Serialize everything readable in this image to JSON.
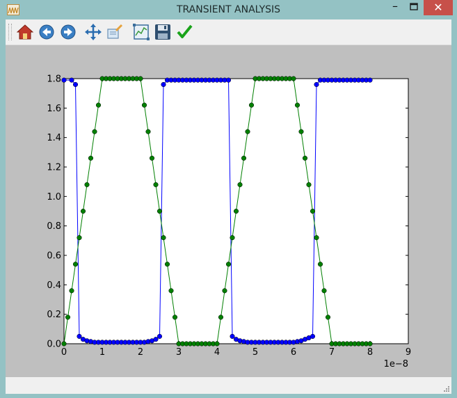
{
  "window": {
    "title": "TRANSIENT ANALYSIS",
    "minimize_label": "–",
    "close_label": "✕"
  },
  "toolbar": {
    "buttons": [
      {
        "name": "home-button",
        "icon": "home-icon"
      },
      {
        "name": "back-button",
        "icon": "back-arrow-icon"
      },
      {
        "name": "forward-button",
        "icon": "forward-arrow-icon"
      },
      {
        "name": "pan-button",
        "icon": "pan-move-icon"
      },
      {
        "name": "zoom-button",
        "icon": "zoom-rect-icon"
      },
      {
        "name": "subplots-button",
        "icon": "subplots-config-icon"
      },
      {
        "name": "save-button",
        "icon": "save-floppy-icon"
      },
      {
        "name": "confirm-button",
        "icon": "checkmark-icon"
      }
    ]
  },
  "colors": {
    "series_blue": "#0000ff",
    "series_green": "#007f00",
    "close_button": "#c7504a",
    "canvas_bg": "#bfbfbf"
  },
  "chart_data": {
    "type": "line",
    "title": "",
    "xlabel": "",
    "ylabel": "",
    "x_offset_label": "1e−8",
    "xlim": [
      0,
      9
    ],
    "ylim": [
      0.0,
      1.8
    ],
    "x_ticks": [
      "0",
      "1",
      "2",
      "3",
      "4",
      "5",
      "6",
      "7",
      "8",
      "9"
    ],
    "y_ticks": [
      "0.0",
      "0.2",
      "0.4",
      "0.6",
      "0.8",
      "1.0",
      "1.2",
      "1.4",
      "1.6",
      "1.8"
    ],
    "grid": false,
    "series": [
      {
        "color": "#0000ff",
        "marker": "circle",
        "x": [
          0,
          0.2,
          0.3,
          0.4,
          0.5,
          0.6,
          0.7,
          0.8,
          0.9,
          1.0,
          1.1,
          1.2,
          1.3,
          1.4,
          1.5,
          1.6,
          1.7,
          1.8,
          1.9,
          2.0,
          2.1,
          2.2,
          2.3,
          2.4,
          2.5,
          2.6,
          2.7,
          2.8,
          2.9,
          3.0,
          3.1,
          3.2,
          3.3,
          3.4,
          3.5,
          3.6,
          3.7,
          3.8,
          3.9,
          4.0,
          4.1,
          4.2,
          4.3,
          4.4,
          4.5,
          4.6,
          4.7,
          4.8,
          4.9,
          5.0,
          5.1,
          5.2,
          5.3,
          5.4,
          5.5,
          5.6,
          5.7,
          5.8,
          5.9,
          6.0,
          6.1,
          6.2,
          6.3,
          6.4,
          6.5,
          6.6,
          6.7,
          6.8,
          6.9,
          7.0,
          7.1,
          7.2,
          7.3,
          7.4,
          7.5,
          7.6,
          7.7,
          7.8,
          7.9,
          8.0
        ],
        "y": [
          1.79,
          1.79,
          1.76,
          0.05,
          0.03,
          0.02,
          0.015,
          0.01,
          0.01,
          0.01,
          0.01,
          0.01,
          0.01,
          0.01,
          0.01,
          0.01,
          0.01,
          0.01,
          0.01,
          0.01,
          0.01,
          0.015,
          0.02,
          0.03,
          0.05,
          1.76,
          1.79,
          1.79,
          1.79,
          1.79,
          1.79,
          1.79,
          1.79,
          1.79,
          1.79,
          1.79,
          1.79,
          1.79,
          1.79,
          1.79,
          1.79,
          1.79,
          1.79,
          0.05,
          0.03,
          0.02,
          0.015,
          0.01,
          0.01,
          0.01,
          0.01,
          0.01,
          0.01,
          0.01,
          0.01,
          0.01,
          0.01,
          0.01,
          0.01,
          0.01,
          0.015,
          0.02,
          0.03,
          0.04,
          0.05,
          1.76,
          1.79,
          1.79,
          1.79,
          1.79,
          1.79,
          1.79,
          1.79,
          1.79,
          1.79,
          1.79,
          1.79,
          1.79,
          1.79,
          1.79
        ]
      },
      {
        "color": "#007f00",
        "marker": "circle",
        "x": [
          0,
          0.1,
          0.2,
          0.3,
          0.4,
          0.5,
          0.6,
          0.7,
          0.8,
          0.9,
          1.0,
          1.1,
          1.2,
          1.3,
          1.4,
          1.5,
          1.6,
          1.7,
          1.8,
          1.9,
          2.0,
          2.1,
          2.2,
          2.3,
          2.4,
          2.5,
          2.6,
          2.7,
          2.8,
          2.9,
          3.0,
          3.1,
          3.2,
          3.3,
          3.4,
          3.5,
          3.6,
          3.7,
          3.8,
          3.9,
          4.0,
          4.1,
          4.2,
          4.3,
          4.4,
          4.5,
          4.6,
          4.7,
          4.8,
          4.9,
          5.0,
          5.1,
          5.2,
          5.3,
          5.4,
          5.5,
          5.6,
          5.7,
          5.8,
          5.9,
          6.0,
          6.1,
          6.2,
          6.3,
          6.4,
          6.5,
          6.6,
          6.7,
          6.8,
          6.9,
          7.0,
          7.1,
          7.2,
          7.3,
          7.4,
          7.5,
          7.6,
          7.7,
          7.8,
          7.9,
          8.0
        ],
        "y": [
          0.0,
          0.18,
          0.36,
          0.54,
          0.72,
          0.9,
          1.08,
          1.26,
          1.44,
          1.62,
          1.8,
          1.8,
          1.8,
          1.8,
          1.8,
          1.8,
          1.8,
          1.8,
          1.8,
          1.8,
          1.8,
          1.62,
          1.44,
          1.26,
          1.08,
          0.9,
          0.72,
          0.54,
          0.36,
          0.18,
          0.0,
          0.0,
          0.0,
          0.0,
          0.0,
          0.0,
          0.0,
          0.0,
          0.0,
          0.0,
          0.0,
          0.18,
          0.36,
          0.54,
          0.72,
          0.9,
          1.08,
          1.26,
          1.44,
          1.62,
          1.8,
          1.8,
          1.8,
          1.8,
          1.8,
          1.8,
          1.8,
          1.8,
          1.8,
          1.8,
          1.8,
          1.62,
          1.44,
          1.26,
          1.08,
          0.9,
          0.72,
          0.54,
          0.36,
          0.18,
          0.0,
          0.0,
          0.0,
          0.0,
          0.0,
          0.0,
          0.0,
          0.0,
          0.0,
          0.0,
          0.0
        ]
      }
    ]
  }
}
